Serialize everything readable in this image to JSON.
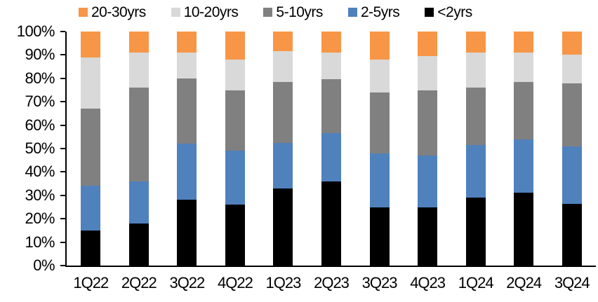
{
  "chart_data": {
    "type": "bar",
    "subtype": "stacked-100-percent",
    "title": "",
    "categories": [
      "1Q22",
      "2Q22",
      "3Q22",
      "4Q22",
      "1Q23",
      "2Q23",
      "3Q23",
      "4Q23",
      "1Q24",
      "2Q24",
      "3Q24"
    ],
    "series": [
      {
        "name": "<2yrs",
        "color": "#000000",
        "values": [
          15,
          18,
          28,
          26,
          33,
          36,
          25,
          25,
          29,
          31,
          26.5
        ]
      },
      {
        "name": "2-5yrs",
        "color": "#4F81BD",
        "values": [
          19,
          18,
          24,
          23,
          19.5,
          20.5,
          23,
          22,
          22.5,
          23,
          24.5
        ]
      },
      {
        "name": "5-10yrs",
        "color": "#808080",
        "values": [
          33,
          40,
          28,
          26,
          26,
          23,
          26,
          28,
          24.5,
          24.5,
          27
        ]
      },
      {
        "name": "10-20yrs",
        "color": "#D9D9D9",
        "values": [
          22,
          15,
          11,
          13,
          13,
          11.5,
          14,
          14.5,
          15,
          12.5,
          12
        ]
      },
      {
        "name": "20-30yrs",
        "color": "#F79646",
        "values": [
          11,
          9,
          9,
          12,
          8.5,
          9,
          12,
          10.5,
          9,
          9,
          10
        ]
      }
    ],
    "stack_order": "bottom-to-top",
    "legend": {
      "position": "top",
      "order": [
        "20-30yrs",
        "10-20yrs",
        "5-10yrs",
        "2-5yrs",
        "<2yrs"
      ]
    },
    "y_axis": {
      "min": 0,
      "max": 100,
      "ticks": [
        "0%",
        "10%",
        "20%",
        "30%",
        "40%",
        "50%",
        "60%",
        "70%",
        "80%",
        "90%",
        "100%"
      ]
    },
    "x_axis": {
      "label": ""
    },
    "grid": false,
    "axis_color": "#000000"
  }
}
